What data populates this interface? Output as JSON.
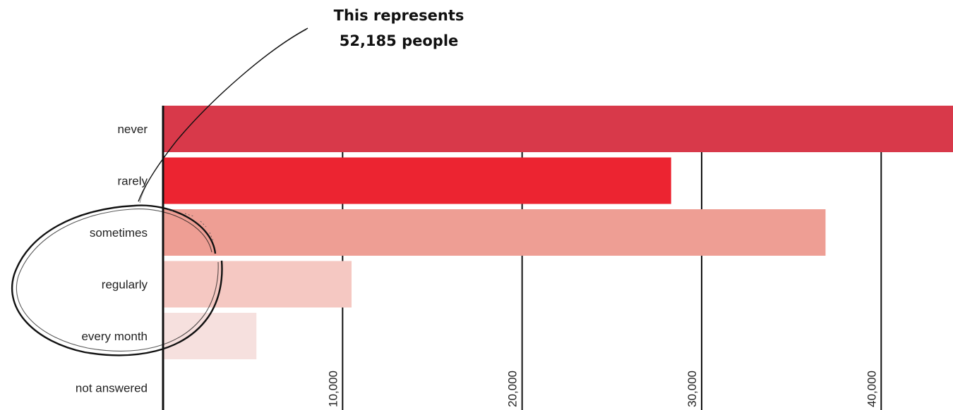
{
  "annotation": {
    "line1": "This represents",
    "line2": "52,185 people"
  },
  "chart_data": {
    "type": "bar",
    "orientation": "horizontal",
    "categories": [
      "never",
      "rarely",
      "sometimes",
      "regularly",
      "every month",
      "not answered"
    ],
    "values": [
      44000,
      28300,
      36900,
      10500,
      5200,
      0
    ],
    "colors": [
      "#d8394a",
      "#ec2431",
      "#ee9e94",
      "#f5c8c2",
      "#f6e0de",
      "#ffffff"
    ],
    "xticks": [
      10000,
      20000,
      30000,
      40000
    ],
    "xtick_labels": [
      "10,000",
      "20,000",
      "30,000",
      "40,000"
    ],
    "xlim": [
      0,
      44000
    ],
    "grid": true,
    "title": "",
    "xlabel": "",
    "ylabel": "",
    "highlighted_category": "sometimes",
    "highlighted_value_text": "52,185 people"
  }
}
